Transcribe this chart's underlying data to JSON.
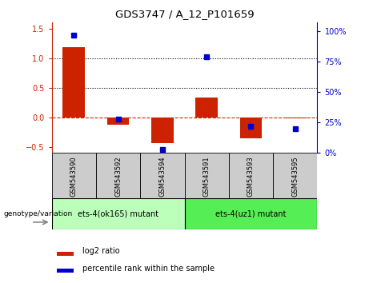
{
  "title": "GDS3747 / A_12_P101659",
  "samples": [
    "GSM543590",
    "GSM543592",
    "GSM543594",
    "GSM543591",
    "GSM543593",
    "GSM543595"
  ],
  "log2_ratio": [
    1.18,
    -0.12,
    -0.43,
    0.33,
    -0.35,
    -0.02
  ],
  "percentile_rank": [
    97,
    28,
    3,
    79,
    22,
    20
  ],
  "ylim_left": [
    -0.6,
    1.6
  ],
  "ylim_right": [
    0,
    107
  ],
  "yticks_left": [
    -0.5,
    0.0,
    0.5,
    1.0,
    1.5
  ],
  "yticks_right": [
    0,
    25,
    50,
    75,
    100
  ],
  "bar_color": "#cc2200",
  "dot_color": "#0000cc",
  "dotted_lines": [
    0.5,
    1.0
  ],
  "group1_label": "ets-4(ok165) mutant",
  "group2_label": "ets-4(uz1) mutant",
  "group1_indices": [
    0,
    1,
    2
  ],
  "group2_indices": [
    3,
    4,
    5
  ],
  "group1_color": "#bbffbb",
  "group2_color": "#55ee55",
  "label_genotype": "genotype/variation",
  "legend_bar": "log2 ratio",
  "legend_dot": "percentile rank within the sample",
  "axis_left_color": "#cc2200",
  "axis_right_color": "#0000cc",
  "tick_label_area_color": "#cccccc",
  "bar_width": 0.5
}
